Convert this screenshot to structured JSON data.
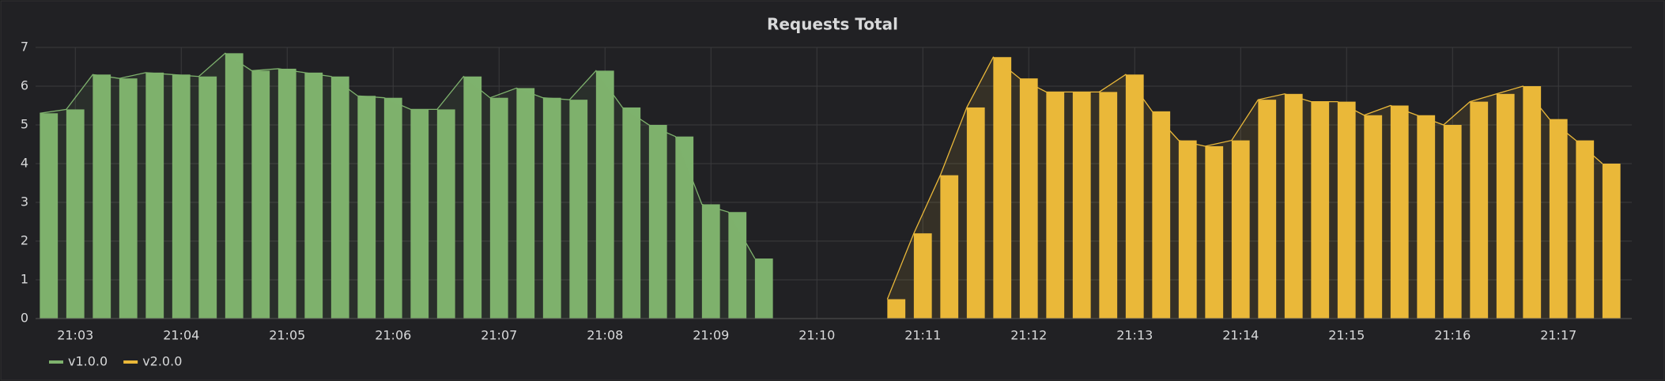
{
  "chart_data": {
    "type": "bar",
    "title": "Requests Total",
    "categories": [
      null,
      "21:03",
      null,
      null,
      null,
      "21:04",
      null,
      null,
      null,
      "21:05",
      null,
      null,
      null,
      "21:06",
      null,
      null,
      null,
      "21:07",
      null,
      null,
      null,
      "21:08",
      null,
      null,
      null,
      "21:09",
      null,
      null,
      null,
      "21:10",
      null,
      null,
      null,
      "21:11",
      null,
      null,
      null,
      "21:12",
      null,
      null,
      null,
      "21:13",
      null,
      null,
      null,
      "21:14",
      null,
      null,
      null,
      "21:15",
      null,
      null,
      null,
      "21:16",
      null,
      null,
      null,
      "21:17",
      null,
      null
    ],
    "series": [
      {
        "name": "v1.0.0",
        "color": "#7eb26d",
        "values": [
          5.3,
          5.4,
          6.3,
          6.2,
          6.35,
          6.3,
          6.25,
          6.85,
          6.4,
          6.45,
          6.35,
          6.25,
          5.75,
          5.7,
          5.4,
          5.4,
          6.25,
          5.7,
          5.95,
          5.7,
          5.65,
          6.4,
          5.45,
          5,
          4.7,
          2.95,
          2.75,
          1.55,
          null,
          null,
          null,
          null,
          null,
          null,
          null,
          null,
          null,
          null,
          null,
          null,
          null,
          null,
          null,
          null,
          null,
          null,
          null,
          null,
          null,
          null,
          null,
          null,
          null,
          null,
          null,
          null,
          null,
          null,
          null,
          null
        ]
      },
      {
        "name": "v2.0.0",
        "color": "#eab839",
        "values": [
          null,
          null,
          null,
          null,
          null,
          null,
          null,
          null,
          null,
          null,
          null,
          null,
          null,
          null,
          null,
          null,
          null,
          null,
          null,
          null,
          null,
          null,
          null,
          null,
          null,
          null,
          null,
          null,
          null,
          null,
          null,
          null,
          0.5,
          2.2,
          3.7,
          5.45,
          6.75,
          6.2,
          5.85,
          5.85,
          5.85,
          6.3,
          5.35,
          4.6,
          4.45,
          4.6,
          5.65,
          5.8,
          5.6,
          5.6,
          5.25,
          5.5,
          5.25,
          5,
          5.6,
          5.8,
          6,
          5.15,
          4.6,
          4
        ]
      }
    ],
    "ylim": [
      0,
      7
    ],
    "yticks": [
      0,
      1,
      2,
      3,
      4,
      5,
      6,
      7
    ],
    "grid": true,
    "legend": "bottom"
  }
}
